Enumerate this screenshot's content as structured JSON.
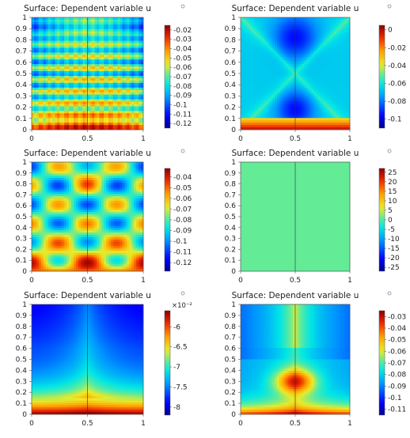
{
  "chart_data": [
    {
      "type": "heatmap",
      "title": "Surface: Dependent variable u",
      "xlabel": "",
      "ylabel": "",
      "x_ticks": [
        "0",
        "0.5",
        "1"
      ],
      "y_ticks": [
        "0",
        "0.1",
        "0.2",
        "0.3",
        "0.4",
        "0.5",
        "0.6",
        "0.7",
        "0.8",
        "0.9",
        "1"
      ],
      "color_range": [
        -0.125,
        -0.015
      ],
      "colorbar_ticks": [
        "-0.02",
        "-0.03",
        "-0.04",
        "-0.05",
        "-0.06",
        "-0.07",
        "-0.08",
        "-0.09",
        "-0.1",
        "-0.11",
        "-0.12"
      ],
      "colorbar_ticks_values": [
        -0.02,
        -0.03,
        -0.04,
        -0.05,
        -0.06,
        -0.07,
        -0.08,
        -0.09,
        -0.1,
        -0.11,
        -0.12
      ],
      "colorbar_exponent": "",
      "pattern": "striped-horizontal-bands"
    },
    {
      "type": "heatmap",
      "title": "Surface: Dependent variable u",
      "xlabel": "",
      "ylabel": "",
      "x_ticks": [
        "0",
        "0.5",
        "1"
      ],
      "y_ticks": [
        "0",
        "0.1",
        "0.2",
        "0.3",
        "0.4",
        "0.5",
        "0.6",
        "0.7",
        "0.8",
        "0.9",
        "1"
      ],
      "color_range": [
        -0.11,
        0.005
      ],
      "colorbar_ticks": [
        "0",
        "-0.02",
        "-0.04",
        "-0.06",
        "-0.08",
        "-0.1"
      ],
      "colorbar_ticks_values": [
        0,
        -0.02,
        -0.04,
        -0.06,
        -0.08,
        -0.1
      ],
      "colorbar_exponent": "",
      "pattern": "x-shaped-with-warm-bottom-band"
    },
    {
      "type": "heatmap",
      "title": "Surface: Dependent variable u",
      "xlabel": "",
      "ylabel": "",
      "x_ticks": [
        "0",
        "0.5",
        "1"
      ],
      "y_ticks": [
        "0",
        "0.1",
        "0.2",
        "0.3",
        "0.4",
        "0.5",
        "0.6",
        "0.7",
        "0.8",
        "0.9",
        "1"
      ],
      "color_range": [
        -0.128,
        -0.032
      ],
      "colorbar_ticks": [
        "-0.04",
        "-0.05",
        "-0.06",
        "-0.07",
        "-0.08",
        "-0.09",
        "-0.1",
        "-0.11",
        "-0.12"
      ],
      "colorbar_ticks_values": [
        -0.04,
        -0.05,
        -0.06,
        -0.07,
        -0.08,
        -0.09,
        -0.1,
        -0.11,
        -0.12
      ],
      "colorbar_exponent": "",
      "pattern": "lobed-oscillation"
    },
    {
      "type": "heatmap",
      "title": "Surface: Dependent variable u",
      "xlabel": "",
      "ylabel": "",
      "x_ticks": [
        "0",
        "0.5",
        "1"
      ],
      "y_ticks": [
        "0",
        "0.1",
        "0.2",
        "0.3",
        "0.4",
        "0.5",
        "0.6",
        "0.7",
        "0.8",
        "0.9",
        "1"
      ],
      "color_range": [
        -27,
        27
      ],
      "colorbar_ticks": [
        "25",
        "20",
        "15",
        "10",
        "5",
        "0",
        "-5",
        "-10",
        "-15",
        "-20",
        "-25"
      ],
      "colorbar_ticks_values": [
        25,
        20,
        15,
        10,
        5,
        0,
        -5,
        -10,
        -15,
        -20,
        -25
      ],
      "colorbar_exponent": "",
      "pattern": "uniform-near-zero"
    },
    {
      "type": "heatmap",
      "title": "Surface: Dependent variable u",
      "xlabel": "",
      "ylabel": "",
      "x_ticks": [
        "0",
        "0.5",
        "1"
      ],
      "y_ticks": [
        "0",
        "0.1",
        "0.2",
        "0.3",
        "0.4",
        "0.5",
        "0.6",
        "0.7",
        "0.8",
        "0.9",
        "1"
      ],
      "color_range": [
        -8.2,
        -5.6
      ],
      "colorbar_ticks": [
        "-6",
        "-6.5",
        "-7",
        "-7.5",
        "-8"
      ],
      "colorbar_ticks_values": [
        -6,
        -6.5,
        -7,
        -7.5,
        -8
      ],
      "colorbar_exponent": "×10⁻²",
      "pattern": "smooth-bowl"
    },
    {
      "type": "heatmap",
      "title": "Surface: Dependent variable u",
      "xlabel": "",
      "ylabel": "",
      "x_ticks": [
        "0",
        "0.5",
        "1"
      ],
      "y_ticks": [
        "0",
        "0.1",
        "0.2",
        "0.3",
        "0.4",
        "0.5",
        "0.6",
        "0.7",
        "0.8",
        "0.9",
        "1"
      ],
      "color_range": [
        -0.115,
        -0.025
      ],
      "colorbar_ticks": [
        "-0.03",
        "-0.04",
        "-0.05",
        "-0.06",
        "-0.07",
        "-0.08",
        "-0.09",
        "-0.1",
        "-0.11"
      ],
      "colorbar_ticks_values": [
        -0.03,
        -0.04,
        -0.05,
        -0.06,
        -0.07,
        -0.08,
        -0.09,
        -0.1,
        -0.11
      ],
      "colorbar_exponent": "",
      "pattern": "smooth-x-shaped"
    }
  ]
}
